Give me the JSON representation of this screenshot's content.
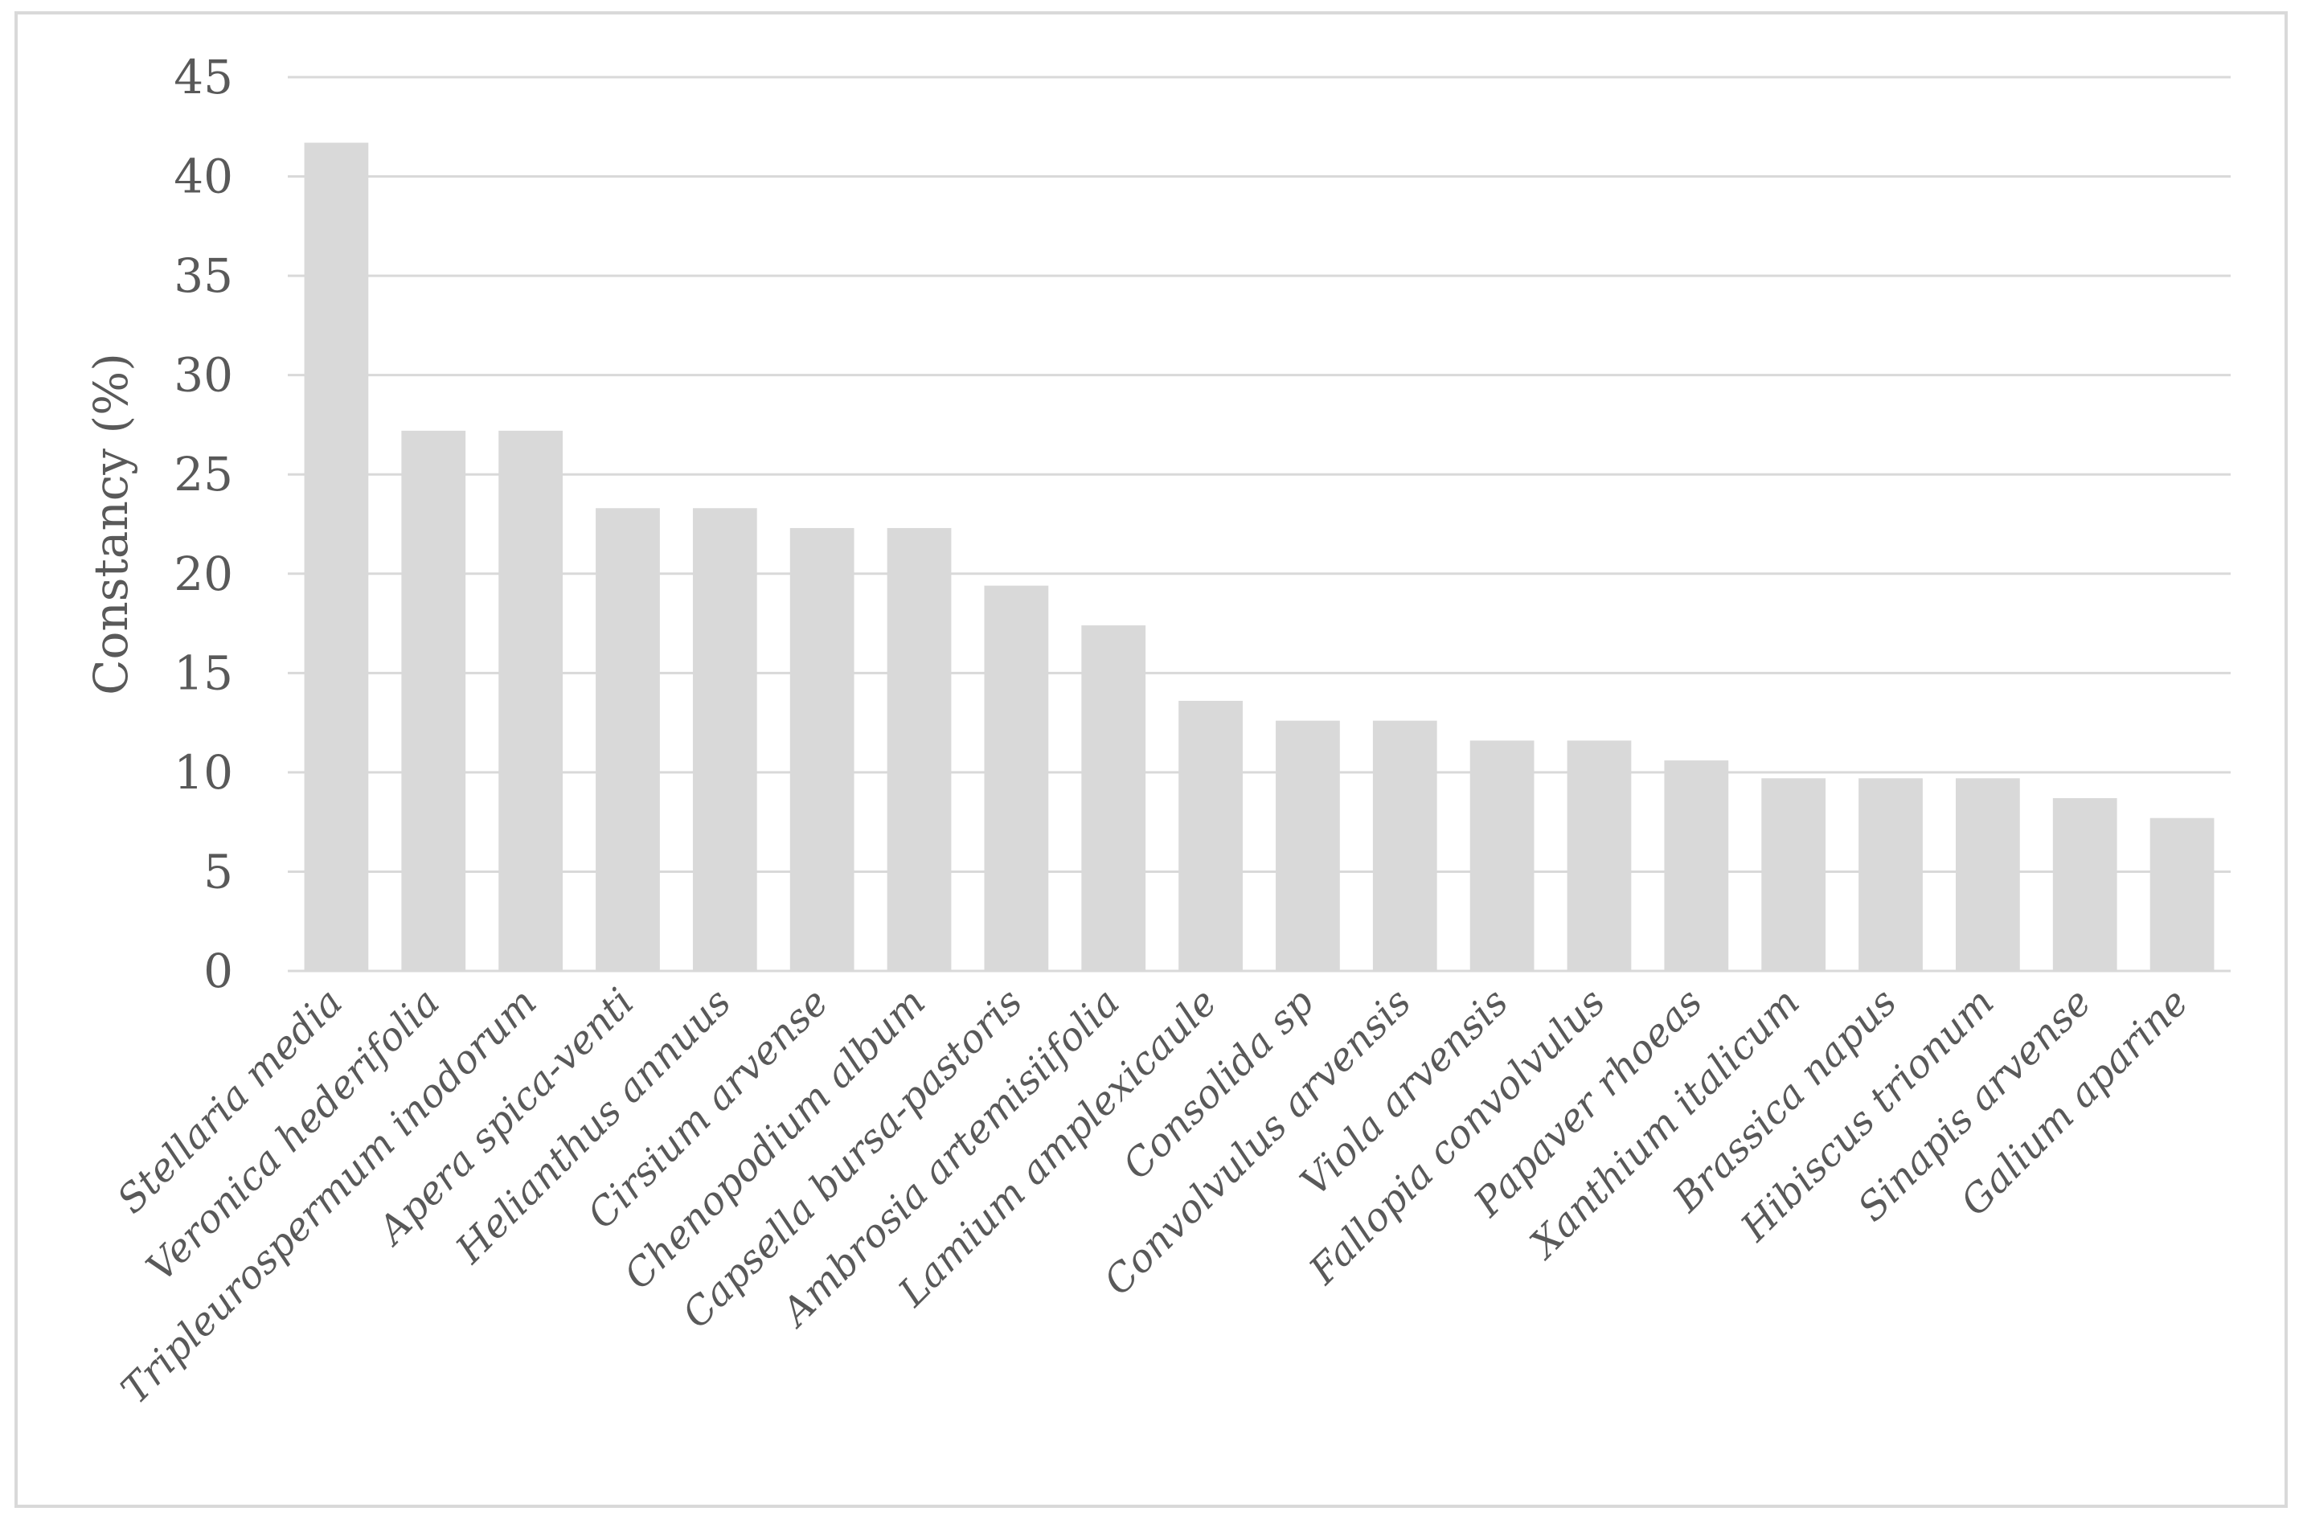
{
  "chart_data": {
    "type": "bar",
    "title": "",
    "xlabel": "",
    "ylabel": "Constancy (%)",
    "ylim": [
      0,
      45
    ],
    "yticks": [
      0,
      5,
      10,
      15,
      20,
      25,
      30,
      35,
      40,
      45
    ],
    "grid": true,
    "legend": "none",
    "bar_color": "#d9d9d9",
    "categories": [
      "Stellaria media",
      "Veronica hederifolia",
      "Tripleurospermum inodorum",
      "Apera spica-venti",
      "Helianthus annuus",
      "Cirsium arvense",
      "Chenopodium album",
      "Capsella bursa-pastoris",
      "Ambrosia artemisiifolia",
      "Lamium amplexicaule",
      "Consolida sp",
      "Convolvulus arvensis",
      "Viola arvensis",
      "Fallopia convolvulus",
      "Papaver rhoeas",
      "Xanthium italicum",
      "Brassica napus",
      "Hibiscus trionum",
      "Sinapis arvense",
      "Galium aparine"
    ],
    "values": [
      41.7,
      27.2,
      27.2,
      23.3,
      23.3,
      22.3,
      22.3,
      19.4,
      17.4,
      13.6,
      12.6,
      12.6,
      11.6,
      11.6,
      10.6,
      9.7,
      9.7,
      9.7,
      8.7,
      7.7
    ]
  }
}
